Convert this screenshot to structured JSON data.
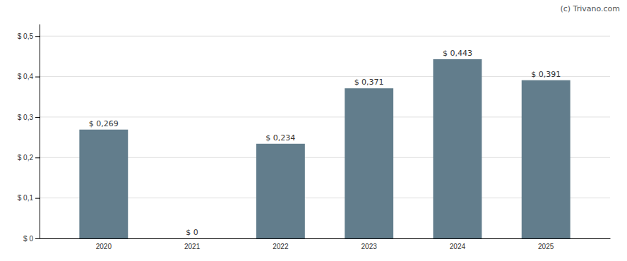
{
  "chart_data": {
    "type": "bar",
    "categories": [
      "2020",
      "2021",
      "2022",
      "2023",
      "2024",
      "2025"
    ],
    "values": [
      0.269,
      0.0,
      0.234,
      0.371,
      0.443,
      0.391
    ],
    "value_labels": [
      "$ 0,269",
      "$ 0",
      "$ 0,234",
      "$ 0,371",
      "$ 0,443",
      "$ 0,391"
    ],
    "data_labels": true,
    "color": "#627d8c",
    "ylim": [
      0,
      0.53
    ],
    "yticks": [
      {
        "value": 0.0,
        "label": "$ 0"
      },
      {
        "value": 0.1,
        "label": "$ 0,1"
      },
      {
        "value": 0.2,
        "label": "$ 0,2"
      },
      {
        "value": 0.3,
        "label": "$ 0,3"
      },
      {
        "value": 0.4,
        "label": "$ 0,4"
      },
      {
        "value": 0.5,
        "label": "$ 0,5"
      }
    ],
    "grid": true,
    "annotations": [
      "(c) Trivano.com"
    ]
  }
}
